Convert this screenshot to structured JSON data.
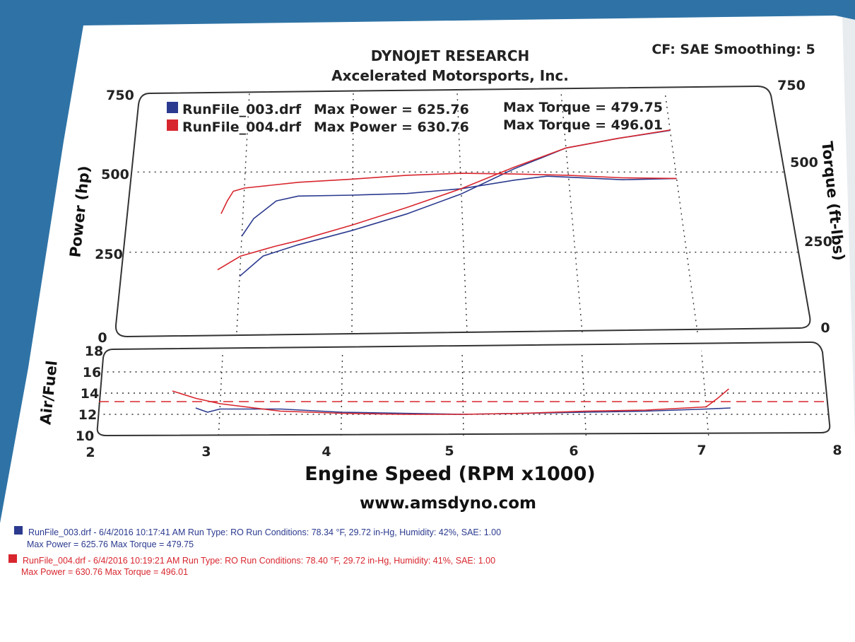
{
  "header": {
    "company": "DYNOJET RESEARCH",
    "shop": "Axcelerated Motorsports, Inc.",
    "settings": "CF: SAE  Smoothing: 5",
    "website": "www.amsdyno.com"
  },
  "colors": {
    "run1": "#2b3a8f",
    "run2": "#d8262e",
    "paper": "#ffffff",
    "background": "#2f73a6"
  },
  "legend": [
    {
      "name": "RunFile_003.drf",
      "power": "Max Power = 625.76",
      "torque": "Max Torque = 479.75"
    },
    {
      "name": "RunFile_004.drf",
      "power": "Max Power = 630.76",
      "torque": "Max Torque = 496.01"
    }
  ],
  "footer": [
    {
      "line1": "RunFile_003.drf - 6/4/2016 10:17:41 AM  Run Type: RO  Run Conditions: 78.34 °F, 29.72 in-Hg,  Humidity:  42%, SAE: 1.00",
      "line2": "Max Power = 625.76  Max Torque = 479.75"
    },
    {
      "line1": "RunFile_004.drf - 6/4/2016 10:19:21 AM  Run Type: RO  Run Conditions: 78.40 °F, 29.72 in-Hg,  Humidity:  41%, SAE: 1.00",
      "line2": "Max Power = 630.76  Max Torque = 496.01"
    }
  ],
  "chart_data": [
    {
      "type": "line",
      "title": "",
      "xlabel": "Engine Speed (RPM x1000)",
      "ylabel": "Power (hp)",
      "y2label": "Torque (ft-lbs)",
      "xlim": [
        2,
        8
      ],
      "ylim": [
        0,
        750
      ],
      "y2lim": [
        0,
        750
      ],
      "x_ticks": [
        "2",
        "3",
        "4",
        "5",
        "6",
        "7",
        "8"
      ],
      "y_ticks": [
        "0",
        "250",
        "500",
        "750"
      ],
      "y2_ticks": [
        "0",
        "250",
        "500",
        "750"
      ],
      "grid": true,
      "legend_position": "top-left",
      "series": [
        {
          "name": "RunFile_003.drf",
          "color": "#2b3a8f",
          "kind": "power",
          "x": [
            3.0,
            3.2,
            3.5,
            4.0,
            4.5,
            5.0,
            5.5,
            6.0,
            6.5,
            7.0
          ],
          "y": [
            175,
            238,
            272,
            318,
            370,
            432,
            510,
            575,
            605,
            630
          ]
        },
        {
          "name": "RunFile_003.drf",
          "color": "#2b3a8f",
          "kind": "torque",
          "x": [
            3.0,
            3.1,
            3.3,
            3.5,
            4.0,
            4.5,
            5.0,
            5.5,
            5.8,
            6.0,
            6.5,
            7.0
          ],
          "y": [
            300,
            355,
            410,
            425,
            428,
            433,
            448,
            475,
            487,
            484,
            476,
            480
          ]
        },
        {
          "name": "RunFile_004.drf",
          "color": "#d8262e",
          "kind": "power",
          "x": [
            2.8,
            3.0,
            3.3,
            3.5,
            4.0,
            4.5,
            5.0,
            5.5,
            6.0,
            6.5,
            7.0
          ],
          "y": [
            195,
            238,
            268,
            285,
            335,
            390,
            448,
            515,
            575,
            605,
            631
          ]
        },
        {
          "name": "RunFile_004.drf",
          "color": "#d8262e",
          "kind": "torque",
          "x": [
            2.8,
            2.85,
            2.9,
            3.0,
            3.5,
            4.0,
            4.5,
            5.0,
            5.5,
            6.0,
            6.5,
            7.0
          ],
          "y": [
            370,
            410,
            440,
            450,
            468,
            478,
            490,
            496,
            494,
            490,
            482,
            480
          ]
        }
      ]
    },
    {
      "type": "line",
      "title": "",
      "xlabel": "Engine Speed (RPM x1000)",
      "ylabel": "Air/Fuel",
      "xlim": [
        2,
        8
      ],
      "ylim": [
        10,
        18
      ],
      "y_ticks": [
        "10",
        "12",
        "14",
        "16",
        "18"
      ],
      "grid": true,
      "reference_line": 13.2,
      "series": [
        {
          "name": "RunFile_003.drf",
          "color": "#2b3a8f",
          "x": [
            2.8,
            2.9,
            3.0,
            3.5,
            4.0,
            4.5,
            5.0,
            5.5,
            6.0,
            6.5,
            7.0,
            7.2
          ],
          "y": [
            12.6,
            12.2,
            12.5,
            12.5,
            12.2,
            12.1,
            12.0,
            12.1,
            12.2,
            12.3,
            12.5,
            12.6
          ]
        },
        {
          "name": "RunFile_004.drf",
          "color": "#d8262e",
          "x": [
            2.6,
            2.8,
            3.0,
            3.5,
            4.0,
            4.5,
            5.0,
            5.5,
            6.0,
            6.5,
            7.0,
            7.1,
            7.2
          ],
          "y": [
            14.2,
            13.5,
            13.0,
            12.3,
            12.1,
            12.0,
            12.0,
            12.1,
            12.3,
            12.4,
            12.7,
            13.5,
            14.4
          ]
        }
      ]
    }
  ]
}
